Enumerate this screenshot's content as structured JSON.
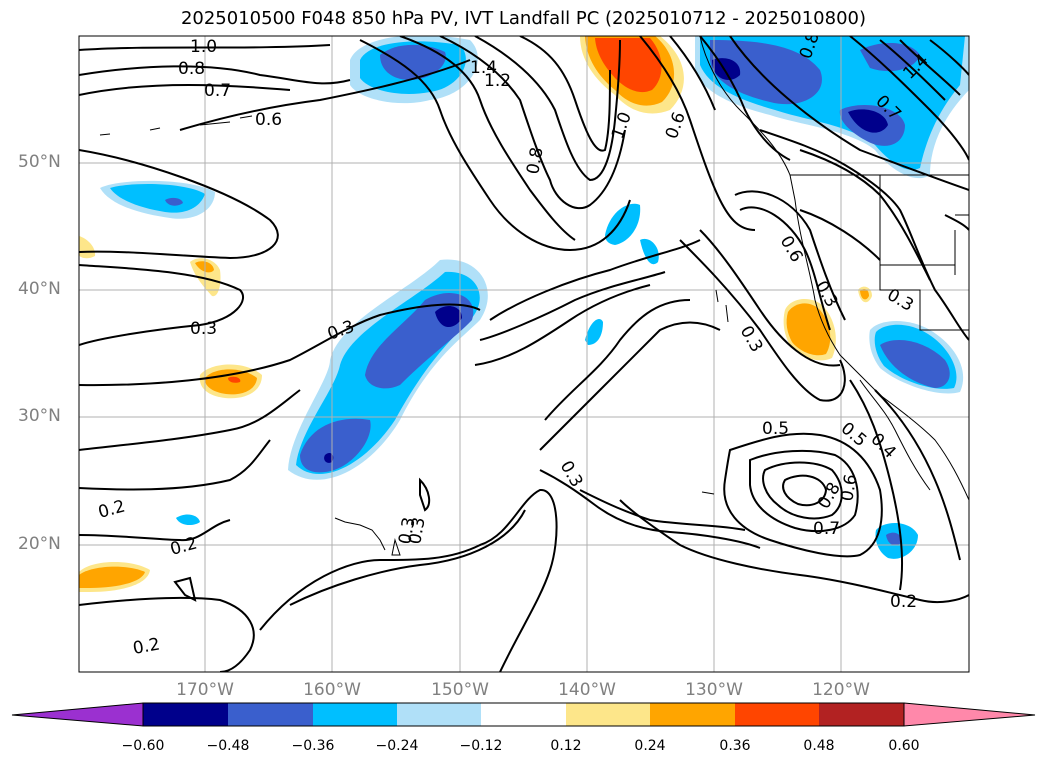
{
  "title": "2025010500 F048 850 hPa PV, IVT Landfall PC (2025010712 - 2025010800)",
  "lat_labels": [
    "50°N",
    "40°N",
    "30°N",
    "20°N"
  ],
  "lon_labels": [
    "170°W",
    "160°W",
    "150°W",
    "140°W",
    "130°W",
    "120°W"
  ],
  "contour_labels": [
    "1.0",
    "0.8",
    "0.7",
    "0.6",
    "1.4",
    "1.2",
    "0.8",
    "1.0",
    "0.6",
    "0.8",
    "1.4",
    "0.7",
    "0.6",
    "0.5",
    "0.3",
    "0.3",
    "0.3",
    "0.3",
    "0.3",
    "0.3",
    "0.5",
    "0.4",
    "0.3",
    "0.8",
    "0.7",
    "0.6",
    "0.2",
    "0.2",
    "0.2",
    "0.3",
    "0.2"
  ],
  "colorbar": {
    "ticks": [
      "−0.60",
      "−0.48",
      "−0.36",
      "−0.24",
      "−0.12",
      "0.12",
      "0.24",
      "0.36",
      "0.48",
      "0.60"
    ],
    "colors": [
      "#9b30d0",
      "#00008b",
      "#3a5fcd",
      "#00bfff",
      "#b0e0f8",
      "#ffffff",
      "#fde68a",
      "#ffa500",
      "#ff4500",
      "#b22222",
      "#ff88aa"
    ]
  },
  "shading_colors": {
    "neg_light": "#b0e0f8",
    "neg_mid": "#00bfff",
    "neg_strong": "#3a5fcd",
    "neg_max": "#00008b",
    "pos_light": "#fde68a",
    "pos_mid": "#ffa500",
    "pos_strong": "#ff4500"
  }
}
